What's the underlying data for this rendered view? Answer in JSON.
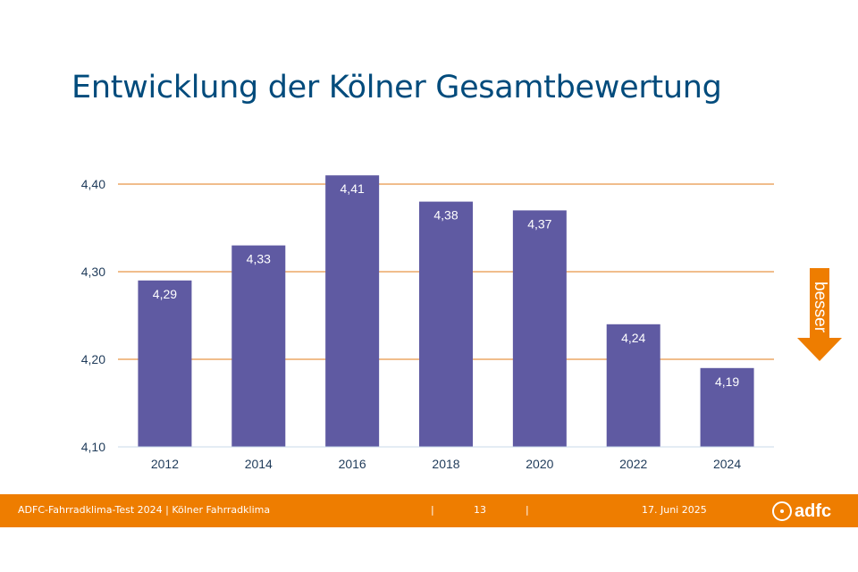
{
  "slide": {
    "title": "Entwicklung der Kölner Gesamtbewertung"
  },
  "chart_data": {
    "type": "bar",
    "categories": [
      "2012",
      "2014",
      "2016",
      "2018",
      "2020",
      "2022",
      "2024"
    ],
    "values": [
      4.29,
      4.33,
      4.41,
      4.38,
      4.37,
      4.24,
      4.19
    ],
    "data_labels": [
      "4,29",
      "4,33",
      "4,41",
      "4,38",
      "4,37",
      "4,24",
      "4,19"
    ],
    "y_ticks": [
      4.1,
      4.2,
      4.3,
      4.4
    ],
    "y_tick_labels": [
      "4,10",
      "4,20",
      "4,30",
      "4,40"
    ],
    "ylim": [
      4.1,
      4.42
    ],
    "grid": true,
    "title": "",
    "xlabel": "",
    "ylabel": "",
    "colors": {
      "bar": "#5f5aa2",
      "grid": "#e07b1a",
      "axis": "#c9d9ea",
      "tick_text": "#1f3b5a"
    }
  },
  "annotation": {
    "arrow_text": "besser",
    "arrow_color": "#ee7d00"
  },
  "footer": {
    "left_text": "ADFC-Fahrradklima-Test 2024 | Kölner Fahrradklima",
    "sep1": "|",
    "page_number": "13",
    "sep2": "|",
    "date": "17. Juni 2025",
    "logo_text": "adfc",
    "background": "#ee7d00"
  }
}
